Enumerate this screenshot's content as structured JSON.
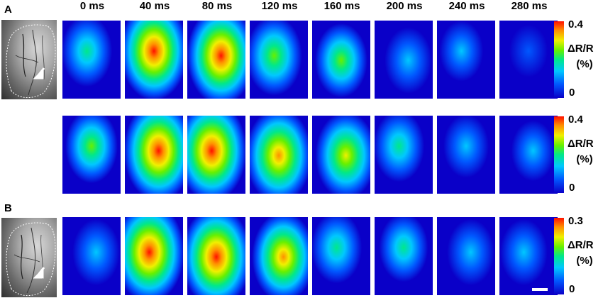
{
  "panel_labels": {
    "a": "A",
    "b": "B"
  },
  "time_labels": [
    "0 ms",
    "40 ms",
    "80 ms",
    "120 ms",
    "160 ms",
    "200 ms",
    "240 ms",
    "280 ms"
  ],
  "colorbars": [
    {
      "max": "0.4",
      "min": "0",
      "label": "ΔR/R",
      "unit": "(%)"
    },
    {
      "max": "0.4",
      "min": "0",
      "label": "ΔR/R",
      "unit": "(%)"
    },
    {
      "max": "0.3",
      "min": "0",
      "label": "ΔR/R",
      "unit": "(%)"
    }
  ],
  "colormap": [
    "#0a00c8",
    "#0058ff",
    "#00c8ff",
    "#00e88a",
    "#66f000",
    "#f0f000",
    "#ff9000",
    "#ff1000"
  ],
  "activation_levels": [
    [
      0.45,
      0.95,
      0.95,
      0.6,
      0.5,
      0.35,
      0.25,
      0.1
    ],
    [
      0.5,
      1.0,
      1.0,
      0.9,
      0.75,
      0.45,
      0.3,
      0.25
    ],
    [
      0.35,
      1.0,
      1.0,
      0.8,
      0.45,
      0.4,
      0.35,
      0.35
    ]
  ]
}
